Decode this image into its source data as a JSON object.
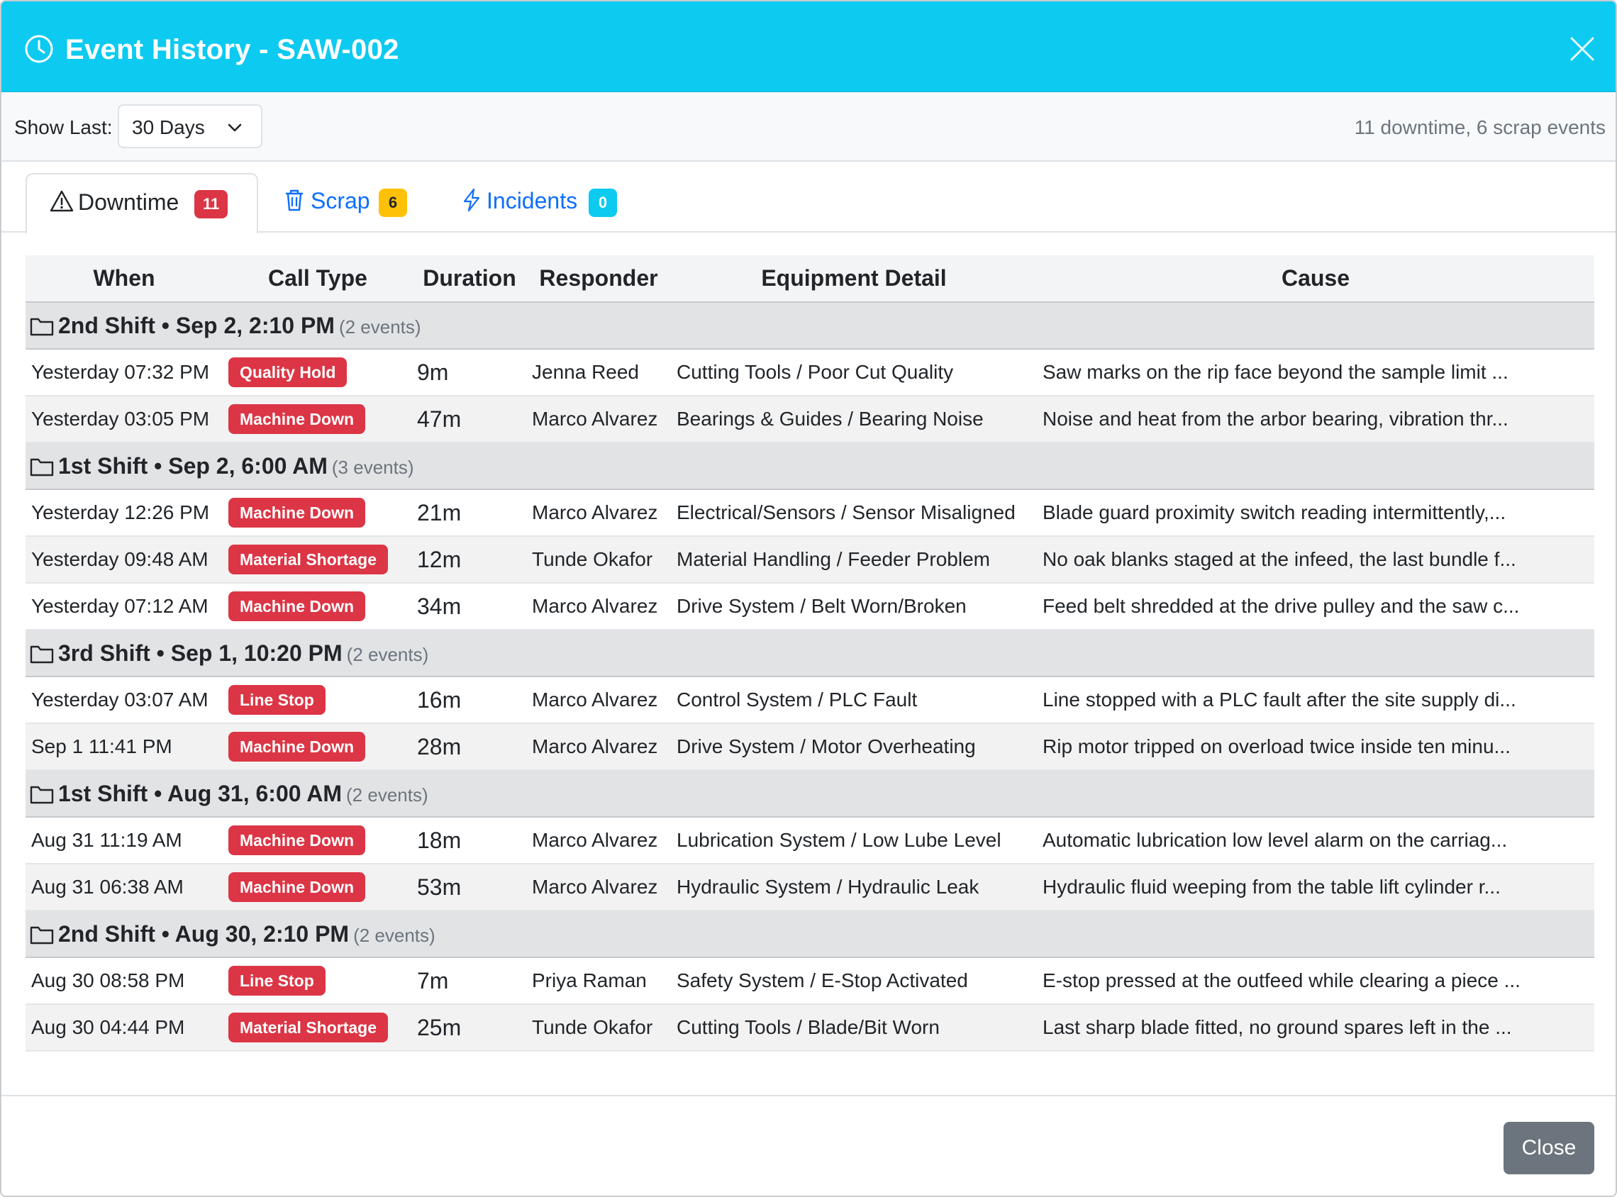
{
  "header": {
    "icon": "clock-icon",
    "title": "Event History - SAW-002"
  },
  "toolbar": {
    "show_last_label": "Show Last:",
    "range_value": "30 Days",
    "summary": "11 downtime, 6 scrap events"
  },
  "tabs": [
    {
      "label": "Downtime",
      "count": "11",
      "icon": "warning-triangle-icon",
      "badge_color": "#dc3545",
      "active": true
    },
    {
      "label": "Scrap",
      "count": "6",
      "icon": "trash-icon",
      "badge_color": "#ffc107",
      "active": false
    },
    {
      "label": "Incidents",
      "count": "0",
      "icon": "lightning-icon",
      "badge_color": "#0dcaf0",
      "active": false
    }
  ],
  "table": {
    "headers": {
      "when": "When",
      "call_type": "Call Type",
      "duration": "Duration",
      "responder": "Responder",
      "equipment": "Equipment Detail",
      "cause": "Cause"
    },
    "groups": [
      {
        "title": "2nd Shift • Sep 2, 2:10 PM",
        "count": "(2 events)",
        "rows": [
          {
            "when": "Yesterday 07:32 PM",
            "type": "Quality Hold",
            "duration": "9m",
            "responder": "Jenna Reed",
            "equipment": "Cutting Tools / Poor Cut Quality",
            "cause": "Saw marks on the rip face beyond the sample limit ..."
          },
          {
            "when": "Yesterday 03:05 PM",
            "type": "Machine Down",
            "duration": "47m",
            "responder": "Marco Alvarez",
            "equipment": "Bearings & Guides / Bearing Noise",
            "cause": "Noise and heat from the arbor bearing, vibration thr..."
          }
        ]
      },
      {
        "title": "1st Shift • Sep 2, 6:00 AM",
        "count": "(3 events)",
        "rows": [
          {
            "when": "Yesterday 12:26 PM",
            "type": "Machine Down",
            "duration": "21m",
            "responder": "Marco Alvarez",
            "equipment": "Electrical/Sensors / Sensor Misaligned",
            "cause": "Blade guard proximity switch reading intermittently,..."
          },
          {
            "when": "Yesterday 09:48 AM",
            "type": "Material Shortage",
            "duration": "12m",
            "responder": "Tunde Okafor",
            "equipment": "Material Handling / Feeder Problem",
            "cause": "No oak blanks staged at the infeed, the last bundle f..."
          },
          {
            "when": "Yesterday 07:12 AM",
            "type": "Machine Down",
            "duration": "34m",
            "responder": "Marco Alvarez",
            "equipment": "Drive System / Belt Worn/Broken",
            "cause": "Feed belt shredded at the drive pulley and the saw c..."
          }
        ]
      },
      {
        "title": "3rd Shift • Sep 1, 10:20 PM",
        "count": "(2 events)",
        "rows": [
          {
            "when": "Yesterday 03:07 AM",
            "type": "Line Stop",
            "duration": "16m",
            "responder": "Marco Alvarez",
            "equipment": "Control System / PLC Fault",
            "cause": "Line stopped with a PLC fault after the site supply di..."
          },
          {
            "when": "Sep 1 11:41 PM",
            "type": "Machine Down",
            "duration": "28m",
            "responder": "Marco Alvarez",
            "equipment": "Drive System / Motor Overheating",
            "cause": "Rip motor tripped on overload twice inside ten minu..."
          }
        ]
      },
      {
        "title": "1st Shift • Aug 31, 6:00 AM",
        "count": "(2 events)",
        "rows": [
          {
            "when": "Aug 31 11:19 AM",
            "type": "Machine Down",
            "duration": "18m",
            "responder": "Marco Alvarez",
            "equipment": "Lubrication System / Low Lube Level",
            "cause": "Automatic lubrication low level alarm on the carriag..."
          },
          {
            "when": "Aug 31 06:38 AM",
            "type": "Machine Down",
            "duration": "53m",
            "responder": "Marco Alvarez",
            "equipment": "Hydraulic System / Hydraulic Leak",
            "cause": "Hydraulic fluid weeping from the table lift cylinder r..."
          }
        ]
      },
      {
        "title": "2nd Shift • Aug 30, 2:10 PM",
        "count": "(2 events)",
        "rows": [
          {
            "when": "Aug 30 08:58 PM",
            "type": "Line Stop",
            "duration": "7m",
            "responder": "Priya Raman",
            "equipment": "Safety System / E-Stop Activated",
            "cause": "E-stop pressed at the outfeed while clearing a piece ..."
          },
          {
            "when": "Aug 30 04:44 PM",
            "type": "Material Shortage",
            "duration": "25m",
            "responder": "Tunde Okafor",
            "equipment": "Cutting Tools / Blade/Bit Worn",
            "cause": "Last sharp blade fitted, no ground spares left in the ..."
          }
        ]
      }
    ]
  },
  "footer": {
    "close_label": "Close"
  },
  "colors": {
    "header_bg": "#0dcaf0",
    "badge_danger": "#dc3545",
    "badge_warning": "#ffc107",
    "badge_info": "#0dcaf0",
    "link": "#0d6efd",
    "close_button": "#6c757d"
  }
}
